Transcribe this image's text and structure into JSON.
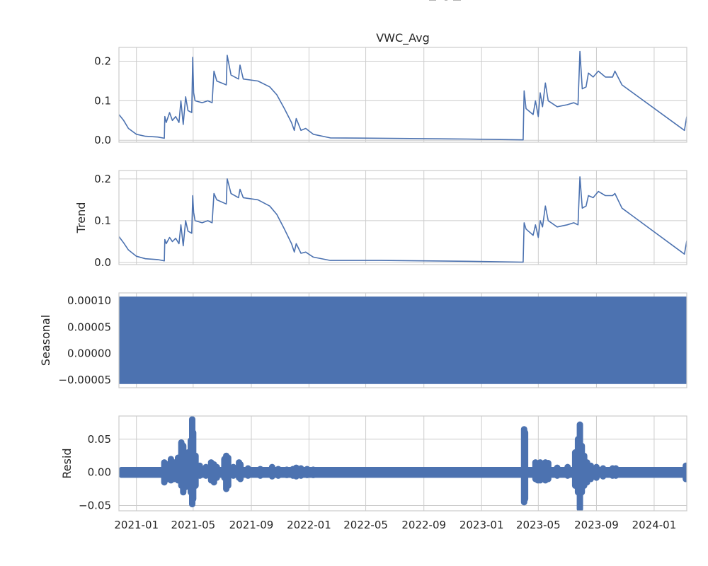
{
  "chart_data": [
    {
      "type": "line",
      "panel": "observed",
      "title": "VWC_Avg",
      "ylabel": "",
      "ylim": [
        -0.005,
        0.235
      ],
      "yticks": [
        0.0,
        0.1,
        0.2
      ],
      "ytick_labels": [
        "0.0",
        "0.1",
        "0.2"
      ],
      "xlim": [
        "2020-11-25",
        "2024-03-10"
      ],
      "color": "#4c72b0",
      "points": [
        [
          "2020-11-25",
          0.065
        ],
        [
          "2020-12-05",
          0.05
        ],
        [
          "2020-12-15",
          0.03
        ],
        [
          "2021-01-01",
          0.015
        ],
        [
          "2021-01-20",
          0.01
        ],
        [
          "2021-02-15",
          0.008
        ],
        [
          "2021-03-01",
          0.005
        ],
        [
          "2021-03-02",
          0.06
        ],
        [
          "2021-03-05",
          0.045
        ],
        [
          "2021-03-12",
          0.07
        ],
        [
          "2021-03-18",
          0.05
        ],
        [
          "2021-03-25",
          0.06
        ],
        [
          "2021-04-01",
          0.045
        ],
        [
          "2021-04-05",
          0.1
        ],
        [
          "2021-04-10",
          0.04
        ],
        [
          "2021-04-15",
          0.11
        ],
        [
          "2021-04-20",
          0.075
        ],
        [
          "2021-04-28",
          0.07
        ],
        [
          "2021-04-30",
          0.21
        ],
        [
          "2021-05-02",
          0.12
        ],
        [
          "2021-05-05",
          0.1
        ],
        [
          "2021-05-20",
          0.095
        ],
        [
          "2021-06-01",
          0.1
        ],
        [
          "2021-06-10",
          0.095
        ],
        [
          "2021-06-14",
          0.175
        ],
        [
          "2021-06-20",
          0.15
        ],
        [
          "2021-07-10",
          0.14
        ],
        [
          "2021-07-12",
          0.215
        ],
        [
          "2021-07-20",
          0.165
        ],
        [
          "2021-08-05",
          0.155
        ],
        [
          "2021-08-08",
          0.19
        ],
        [
          "2021-08-15",
          0.155
        ],
        [
          "2021-09-15",
          0.15
        ],
        [
          "2021-10-10",
          0.135
        ],
        [
          "2021-10-25",
          0.115
        ],
        [
          "2021-11-10",
          0.08
        ],
        [
          "2021-11-25",
          0.045
        ],
        [
          "2021-12-01",
          0.025
        ],
        [
          "2021-12-05",
          0.055
        ],
        [
          "2021-12-15",
          0.025
        ],
        [
          "2021-12-25",
          0.03
        ],
        [
          "2022-01-10",
          0.015
        ],
        [
          "2022-02-15",
          0.006
        ],
        [
          "2022-06-01",
          0.005
        ],
        [
          "2022-12-01",
          0.003
        ],
        [
          "2023-03-30",
          0.001
        ],
        [
          "2023-04-01",
          0.125
        ],
        [
          "2023-04-05",
          0.08
        ],
        [
          "2023-04-20",
          0.065
        ],
        [
          "2023-04-25",
          0.1
        ],
        [
          "2023-05-01",
          0.06
        ],
        [
          "2023-05-05",
          0.12
        ],
        [
          "2023-05-10",
          0.085
        ],
        [
          "2023-05-16",
          0.145
        ],
        [
          "2023-05-22",
          0.1
        ],
        [
          "2023-06-10",
          0.085
        ],
        [
          "2023-07-01",
          0.09
        ],
        [
          "2023-07-15",
          0.095
        ],
        [
          "2023-07-24",
          0.09
        ],
        [
          "2023-07-28",
          0.225
        ],
        [
          "2023-08-02",
          0.13
        ],
        [
          "2023-08-10",
          0.135
        ],
        [
          "2023-08-15",
          0.17
        ],
        [
          "2023-08-25",
          0.16
        ],
        [
          "2023-09-05",
          0.175
        ],
        [
          "2023-09-20",
          0.16
        ],
        [
          "2023-10-05",
          0.16
        ],
        [
          "2023-10-10",
          0.175
        ],
        [
          "2023-10-25",
          0.14
        ],
        [
          "2024-03-05",
          0.025
        ],
        [
          "2024-03-10",
          0.06
        ]
      ]
    },
    {
      "type": "line",
      "panel": "trend",
      "title": "",
      "ylabel": "Trend",
      "ylim": [
        -0.005,
        0.22
      ],
      "yticks": [
        0.0,
        0.1,
        0.2
      ],
      "ytick_labels": [
        "0.0",
        "0.1",
        "0.2"
      ],
      "xlim": [
        "2020-11-25",
        "2024-03-10"
      ],
      "color": "#4c72b0",
      "points": [
        [
          "2020-11-25",
          0.062
        ],
        [
          "2020-12-05",
          0.047
        ],
        [
          "2020-12-15",
          0.03
        ],
        [
          "2021-01-01",
          0.015
        ],
        [
          "2021-01-20",
          0.009
        ],
        [
          "2021-02-15",
          0.007
        ],
        [
          "2021-03-01",
          0.004
        ],
        [
          "2021-03-02",
          0.055
        ],
        [
          "2021-03-05",
          0.045
        ],
        [
          "2021-03-12",
          0.06
        ],
        [
          "2021-03-18",
          0.05
        ],
        [
          "2021-03-25",
          0.058
        ],
        [
          "2021-04-01",
          0.045
        ],
        [
          "2021-04-05",
          0.09
        ],
        [
          "2021-04-10",
          0.04
        ],
        [
          "2021-04-15",
          0.1
        ],
        [
          "2021-04-20",
          0.075
        ],
        [
          "2021-04-28",
          0.07
        ],
        [
          "2021-04-30",
          0.16
        ],
        [
          "2021-05-02",
          0.12
        ],
        [
          "2021-05-05",
          0.1
        ],
        [
          "2021-05-20",
          0.095
        ],
        [
          "2021-06-01",
          0.1
        ],
        [
          "2021-06-10",
          0.095
        ],
        [
          "2021-06-14",
          0.165
        ],
        [
          "2021-06-20",
          0.15
        ],
        [
          "2021-07-10",
          0.14
        ],
        [
          "2021-07-12",
          0.2
        ],
        [
          "2021-07-20",
          0.165
        ],
        [
          "2021-08-05",
          0.155
        ],
        [
          "2021-08-08",
          0.175
        ],
        [
          "2021-08-15",
          0.155
        ],
        [
          "2021-09-15",
          0.15
        ],
        [
          "2021-10-10",
          0.135
        ],
        [
          "2021-10-25",
          0.115
        ],
        [
          "2021-11-10",
          0.08
        ],
        [
          "2021-11-25",
          0.045
        ],
        [
          "2021-12-01",
          0.025
        ],
        [
          "2021-12-05",
          0.045
        ],
        [
          "2021-12-15",
          0.022
        ],
        [
          "2021-12-25",
          0.025
        ],
        [
          "2022-01-10",
          0.013
        ],
        [
          "2022-02-15",
          0.005
        ],
        [
          "2022-06-01",
          0.005
        ],
        [
          "2022-12-01",
          0.003
        ],
        [
          "2023-03-30",
          0.001
        ],
        [
          "2023-04-01",
          0.095
        ],
        [
          "2023-04-05",
          0.08
        ],
        [
          "2023-04-20",
          0.065
        ],
        [
          "2023-04-25",
          0.09
        ],
        [
          "2023-05-01",
          0.06
        ],
        [
          "2023-05-05",
          0.1
        ],
        [
          "2023-05-10",
          0.085
        ],
        [
          "2023-05-16",
          0.135
        ],
        [
          "2023-05-22",
          0.1
        ],
        [
          "2023-06-10",
          0.085
        ],
        [
          "2023-07-01",
          0.09
        ],
        [
          "2023-07-15",
          0.095
        ],
        [
          "2023-07-24",
          0.09
        ],
        [
          "2023-07-28",
          0.205
        ],
        [
          "2023-08-02",
          0.13
        ],
        [
          "2023-08-10",
          0.135
        ],
        [
          "2023-08-15",
          0.16
        ],
        [
          "2023-08-25",
          0.155
        ],
        [
          "2023-09-05",
          0.17
        ],
        [
          "2023-09-20",
          0.16
        ],
        [
          "2023-10-05",
          0.16
        ],
        [
          "2023-10-10",
          0.165
        ],
        [
          "2023-10-25",
          0.13
        ],
        [
          "2024-03-05",
          0.02
        ],
        [
          "2024-03-10",
          0.052
        ]
      ]
    },
    {
      "type": "area",
      "panel": "seasonal",
      "title": "",
      "ylabel": "Seasonal",
      "ylim": [
        -6.5e-05,
        0.000115
      ],
      "yticks": [
        -5e-05,
        0.0,
        5e-05,
        0.0001
      ],
      "ytick_labels": [
        "−0.00005",
        "0.00000",
        "0.00005",
        "0.00010"
      ],
      "xlim": [
        "2020-11-25",
        "2024-03-10"
      ],
      "color": "#4c72b0",
      "band": {
        "min": -5.8e-05,
        "max": 0.000108
      }
    },
    {
      "type": "scatter",
      "panel": "resid",
      "title": "",
      "ylabel": "Resid",
      "ylim": [
        -0.058,
        0.085
      ],
      "yticks": [
        -0.05,
        0.0,
        0.05
      ],
      "ytick_labels": [
        "−0.05",
        "0.00",
        "0.05"
      ],
      "xlim": [
        "2020-11-25",
        "2024-03-10"
      ],
      "xticks": [
        "2021-01-01",
        "2021-05-01",
        "2021-09-01",
        "2022-01-01",
        "2022-05-01",
        "2022-09-01",
        "2023-01-01",
        "2023-05-01",
        "2023-09-01",
        "2024-01-01"
      ],
      "xtick_labels": [
        "2021-01",
        "2021-05",
        "2021-09",
        "2022-01",
        "2022-05",
        "2022-09",
        "2023-01",
        "2023-05",
        "2023-09",
        "2024-01"
      ],
      "color": "#4c72b0",
      "baseline_band": {
        "start": "2020-11-25",
        "end": "2024-03-10",
        "min": -0.005,
        "max": 0.005
      },
      "spikes": [
        [
          "2021-03-01",
          -0.015,
          0.015
        ],
        [
          "2021-03-08",
          -0.01,
          0.012
        ],
        [
          "2021-03-15",
          -0.012,
          0.02
        ],
        [
          "2021-03-22",
          -0.01,
          0.015
        ],
        [
          "2021-03-30",
          -0.012,
          0.022
        ],
        [
          "2021-04-06",
          -0.02,
          0.045
        ],
        [
          "2021-04-10",
          -0.03,
          0.04
        ],
        [
          "2021-04-15",
          -0.022,
          0.025
        ],
        [
          "2021-04-20",
          -0.02,
          0.03
        ],
        [
          "2021-04-26",
          -0.03,
          0.048
        ],
        [
          "2021-04-29",
          -0.048,
          0.08
        ],
        [
          "2021-05-01",
          -0.04,
          0.06
        ],
        [
          "2021-05-06",
          -0.02,
          0.025
        ],
        [
          "2021-05-15",
          -0.005,
          0.01
        ],
        [
          "2021-05-28",
          -0.005,
          0.008
        ],
        [
          "2021-06-08",
          -0.012,
          0.015
        ],
        [
          "2021-06-14",
          -0.015,
          0.012
        ],
        [
          "2021-06-20",
          -0.008,
          0.008
        ],
        [
          "2021-07-06",
          -0.008,
          0.02
        ],
        [
          "2021-07-10",
          -0.025,
          0.025
        ],
        [
          "2021-07-14",
          -0.02,
          0.022
        ],
        [
          "2021-07-25",
          -0.005,
          0.008
        ],
        [
          "2021-08-06",
          -0.008,
          0.015
        ],
        [
          "2021-08-09",
          -0.01,
          0.012
        ],
        [
          "2021-08-25",
          -0.005,
          0.006
        ],
        [
          "2021-09-20",
          -0.005,
          0.005
        ],
        [
          "2021-10-15",
          -0.006,
          0.008
        ],
        [
          "2021-10-28",
          -0.005,
          0.005
        ],
        [
          "2021-11-15",
          -0.004,
          0.004
        ],
        [
          "2021-11-28",
          -0.005,
          0.005
        ],
        [
          "2021-12-05",
          -0.006,
          0.007
        ],
        [
          "2021-12-15",
          -0.005,
          0.006
        ],
        [
          "2021-12-28",
          -0.004,
          0.005
        ],
        [
          "2022-01-10",
          -0.004,
          0.004
        ],
        [
          "2023-04-01",
          -0.045,
          0.065
        ],
        [
          "2023-04-03",
          -0.04,
          0.06
        ],
        [
          "2023-04-25",
          -0.01,
          0.015
        ],
        [
          "2023-04-30",
          -0.012,
          0.012
        ],
        [
          "2023-05-05",
          -0.012,
          0.015
        ],
        [
          "2023-05-10",
          -0.008,
          0.012
        ],
        [
          "2023-05-16",
          -0.012,
          0.015
        ],
        [
          "2023-05-22",
          -0.01,
          0.014
        ],
        [
          "2023-06-10",
          -0.005,
          0.007
        ],
        [
          "2023-07-02",
          -0.005,
          0.008
        ],
        [
          "2023-07-18",
          -0.02,
          0.03
        ],
        [
          "2023-07-24",
          -0.03,
          0.05
        ],
        [
          "2023-07-28",
          -0.055,
          0.072
        ],
        [
          "2023-08-01",
          -0.03,
          0.04
        ],
        [
          "2023-08-06",
          -0.02,
          0.025
        ],
        [
          "2023-08-12",
          -0.015,
          0.015
        ],
        [
          "2023-08-20",
          -0.01,
          0.01
        ],
        [
          "2023-09-01",
          -0.008,
          0.008
        ],
        [
          "2023-09-15",
          -0.006,
          0.006
        ],
        [
          "2023-10-05",
          -0.005,
          0.006
        ],
        [
          "2023-10-12",
          -0.005,
          0.006
        ],
        [
          "2024-03-08",
          -0.01,
          0.01
        ]
      ]
    }
  ]
}
